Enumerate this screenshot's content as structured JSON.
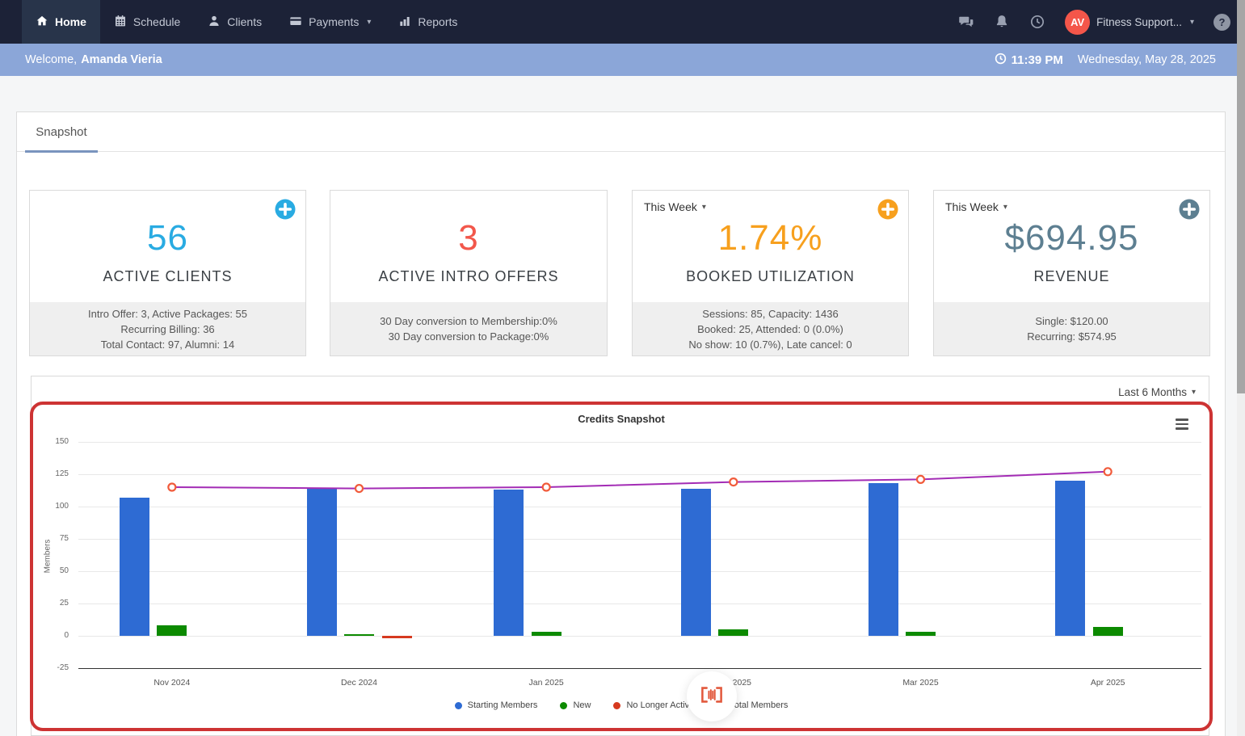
{
  "navbar": {
    "items": [
      {
        "label": "Home",
        "active": true
      },
      {
        "label": "Schedule",
        "active": false
      },
      {
        "label": "Clients",
        "active": false
      },
      {
        "label": "Payments",
        "active": false,
        "has_caret": true
      },
      {
        "label": "Reports",
        "active": false
      }
    ],
    "account": {
      "initials": "AV",
      "name": "Fitness Support...",
      "avatar_color": "#f4564a"
    },
    "help_label": "?"
  },
  "welcome_bar": {
    "prefix": "Welcome,",
    "user_name": "Amanda Vieria",
    "time": "11:39 PM",
    "date": "Wednesday, May 28, 2025"
  },
  "tabs": [
    {
      "label": "Snapshot",
      "active": true
    }
  ],
  "stat_cards": [
    {
      "accent": "#29abe2",
      "value": "56",
      "label": "ACTIVE CLIENTS",
      "period": null,
      "has_add_button": true,
      "details": [
        "Intro Offer: 3, Active Packages: 55",
        "Recurring Billing: 36",
        "Total Contact: 97, Alumni: 14"
      ]
    },
    {
      "accent": "#f2574b",
      "value": "3",
      "label": "ACTIVE INTRO OFFERS",
      "period": null,
      "has_add_button": false,
      "details": [
        "30 Day conversion to Membership:0%",
        "30 Day conversion to Package:0%"
      ]
    },
    {
      "accent": "#f7a01e",
      "value": "1.74%",
      "label": "BOOKED UTILIZATION",
      "period": "This Week",
      "has_add_button": true,
      "details": [
        "Sessions: 85, Capacity: 1436",
        "Booked: 25, Attended: 0 (0.0%)",
        "No show: 10 (0.7%), Late cancel: 0"
      ]
    },
    {
      "accent": "#5d7f91",
      "value": "$694.95",
      "label": "REVENUE",
      "period": "This Week",
      "has_add_button": true,
      "details": [
        "Single: $120.00",
        "Recurring: $574.95"
      ]
    }
  ],
  "chart_panel": {
    "range_label": "Last 6 Months",
    "highlight_color": "#cd3333"
  },
  "chart_data": {
    "type": "bar",
    "title": "Credits Snapshot",
    "ylabel": "Members",
    "ylim": [
      -25,
      150
    ],
    "ytick_step": 25,
    "grid": true,
    "legend_position": "bottom",
    "categories": [
      "Nov 2024",
      "Dec 2024",
      "Jan 2025",
      "Feb 2025",
      "Mar 2025",
      "Apr 2025"
    ],
    "series": [
      {
        "name": "Starting Members",
        "type": "bar",
        "color": "#2e6bd3",
        "values": [
          107,
          114,
          113,
          114,
          118,
          120
        ]
      },
      {
        "name": "New",
        "type": "bar",
        "color": "#0c8a00",
        "values": [
          8,
          1,
          3,
          5,
          3,
          7
        ]
      },
      {
        "name": "No Longer Active",
        "type": "bar",
        "color": "#d6391f",
        "values": [
          0,
          -2,
          0,
          0,
          0,
          0
        ]
      },
      {
        "name": "Total Members",
        "type": "line",
        "color": "#a32cb5",
        "marker_color": "#f15b3b",
        "values": [
          115,
          114,
          115,
          119,
          121,
          127
        ]
      }
    ]
  },
  "loader": {
    "icon": "barcode-scan-icon"
  }
}
